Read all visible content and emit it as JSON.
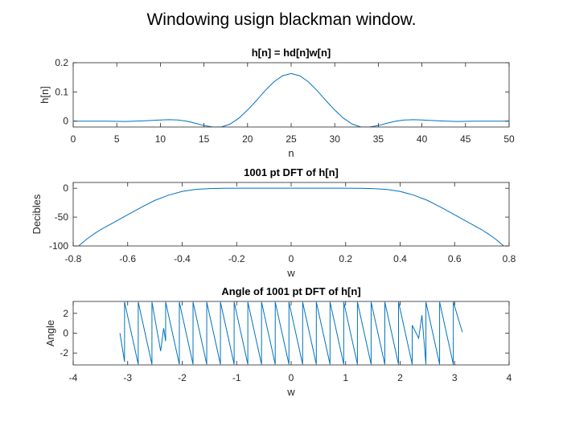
{
  "figure": {
    "suptitle": "Windowing usign blackman window."
  },
  "colors": {
    "series": "#0072BD",
    "axes": "#262626"
  },
  "chart_data": [
    {
      "type": "line",
      "title": "h[n] = hd[n]w[n]",
      "xlabel": "n",
      "ylabel": "h[n]",
      "xlim": [
        0,
        50
      ],
      "ylim": [
        -0.02,
        0.2
      ],
      "xticks": [
        0,
        5,
        10,
        15,
        20,
        25,
        30,
        35,
        40,
        45,
        50
      ],
      "xtick_labels": [
        "0",
        "5",
        "10",
        "15",
        "20",
        "25",
        "30",
        "35",
        "40",
        "45",
        "50"
      ],
      "yticks": [
        0,
        0.1,
        0.2
      ],
      "ytick_labels": [
        "0",
        "0.1",
        "0.2"
      ],
      "grid": false,
      "x": [
        0,
        2,
        4,
        6,
        8,
        10,
        11,
        12,
        13,
        14,
        15,
        16,
        17,
        18,
        19,
        20,
        21,
        22,
        23,
        24,
        25,
        26,
        27,
        28,
        29,
        30,
        31,
        32,
        33,
        34,
        35,
        36,
        37,
        38,
        39,
        40,
        42,
        44,
        46,
        48,
        50
      ],
      "y": [
        0,
        0,
        0,
        -0.001,
        0.001,
        0.004,
        0.005,
        0.004,
        0.0,
        -0.007,
        -0.015,
        -0.02,
        -0.02,
        -0.01,
        0.01,
        0.038,
        0.07,
        0.104,
        0.134,
        0.155,
        0.163,
        0.155,
        0.134,
        0.104,
        0.07,
        0.038,
        0.01,
        -0.01,
        -0.02,
        -0.02,
        -0.015,
        -0.007,
        0.0,
        0.004,
        0.005,
        0.004,
        0.001,
        -0.001,
        0,
        0,
        0
      ]
    },
    {
      "type": "line",
      "title": "1001 pt DFT of h[n]",
      "xlabel": "w",
      "ylabel": "Decibles",
      "xlim": [
        -0.8,
        0.8
      ],
      "ylim": [
        -100,
        10
      ],
      "xticks": [
        -0.8,
        -0.6,
        -0.4,
        -0.2,
        0,
        0.2,
        0.4,
        0.6,
        0.8
      ],
      "xtick_labels": [
        "-0.8",
        "-0.6",
        "-0.4",
        "-0.2",
        "0",
        "0.2",
        "0.4",
        "0.6",
        "0.8"
      ],
      "yticks": [
        -100,
        -50,
        0
      ],
      "ytick_labels": [
        "-100",
        "-50",
        "0"
      ],
      "grid": false,
      "x": [
        -0.78,
        -0.75,
        -0.72,
        -0.7,
        -0.65,
        -0.6,
        -0.55,
        -0.5,
        -0.45,
        -0.4,
        -0.35,
        -0.3,
        -0.25,
        -0.2,
        -0.1,
        0,
        0.1,
        0.2,
        0.25,
        0.3,
        0.35,
        0.4,
        0.45,
        0.5,
        0.55,
        0.6,
        0.65,
        0.7,
        0.72,
        0.75,
        0.78
      ],
      "y": [
        -100,
        -88,
        -78,
        -72,
        -59,
        -46,
        -33,
        -21,
        -12,
        -5.5,
        -2,
        -0.6,
        -0.1,
        0,
        0,
        0,
        0,
        0,
        -0.1,
        -0.6,
        -2,
        -5.5,
        -12,
        -21,
        -33,
        -46,
        -59,
        -72,
        -78,
        -88,
        -100
      ]
    },
    {
      "type": "line",
      "title": "Angle of 1001 pt DFT of h[n]",
      "xlabel": "w",
      "ylabel": "Angle",
      "xlim": [
        -4,
        4
      ],
      "ylim": [
        -3.2,
        3.2
      ],
      "xticks": [
        -4,
        -3,
        -2,
        -1,
        0,
        1,
        2,
        3,
        4
      ],
      "xtick_labels": [
        "-4",
        "-3",
        "-2",
        "-1",
        "0",
        "1",
        "2",
        "3",
        "4"
      ],
      "yticks": [
        -2,
        0,
        2
      ],
      "ytick_labels": [
        "-2",
        "0",
        "2"
      ],
      "grid": false,
      "x": [
        -3.1416,
        -3.0576,
        -3.0574,
        -2.8062,
        -2.806,
        -2.5548,
        -2.5546,
        -2.3948,
        -2.34,
        -2.3034,
        -2.3032,
        -2.052,
        -2.0518,
        -1.8006,
        -1.8004,
        -1.5492,
        -1.549,
        -1.2978,
        -1.2976,
        -1.0464,
        -1.0462,
        -0.795,
        -0.7948,
        -0.5436,
        -0.5434,
        -0.2922,
        -0.292,
        -0.0408,
        -0.0406,
        0.2106,
        0.2108,
        0.462,
        0.4622,
        0.7134,
        0.7136,
        0.9648,
        0.965,
        1.2162,
        1.2164,
        1.4676,
        1.4678,
        1.719,
        1.7192,
        1.9704,
        1.9706,
        2.2218,
        2.222,
        2.34,
        2.4,
        2.4732,
        2.4734,
        2.7246,
        2.7248,
        2.976,
        2.9762,
        3.1416
      ],
      "y": [
        0.0,
        -2.88,
        3.14,
        -3.14,
        3.14,
        -3.14,
        3.14,
        -1.81,
        0.5,
        -0.8,
        3.14,
        -3.14,
        3.14,
        -3.14,
        3.14,
        -3.14,
        3.14,
        -3.14,
        3.14,
        -3.14,
        3.14,
        -3.14,
        3.14,
        -3.14,
        3.14,
        -3.14,
        3.14,
        -3.14,
        3.14,
        -3.14,
        3.14,
        -3.14,
        3.14,
        -3.14,
        3.14,
        -3.14,
        3.14,
        -3.14,
        3.14,
        -3.14,
        3.14,
        -3.14,
        3.14,
        -3.14,
        3.14,
        -3.14,
        0.8,
        -0.5,
        1.81,
        -3.14,
        3.14,
        -3.14,
        3.14,
        -3.14,
        3.14,
        0.1
      ]
    }
  ]
}
